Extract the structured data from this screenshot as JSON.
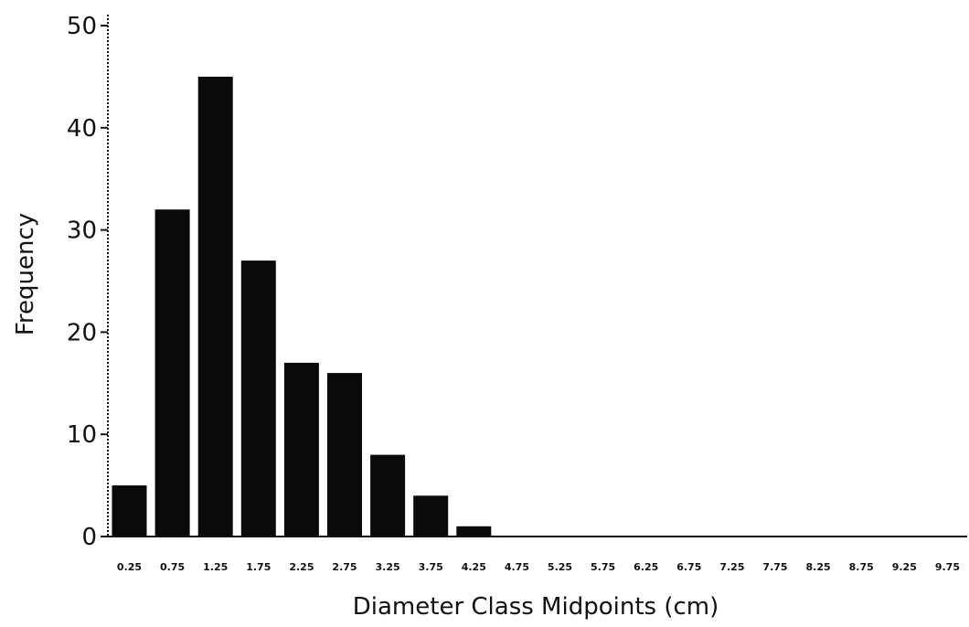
{
  "chart_data": {
    "type": "bar",
    "title": "",
    "xlabel": "Diameter Class Midpoints (cm)",
    "ylabel": "Frequency",
    "ylim": [
      0,
      50
    ],
    "yticks": [
      0,
      10,
      20,
      30,
      40,
      50
    ],
    "grid": false,
    "bar_color": "#0a0a0a",
    "categories": [
      "0.25",
      "0.75",
      "1.25",
      "1.75",
      "2.25",
      "2.75",
      "3.25",
      "3.75",
      "4.25",
      "4.75",
      "5.25",
      "5.75",
      "6.25",
      "6.75",
      "7.25",
      "7.75",
      "8.25",
      "8.75",
      "9.25",
      "9.75"
    ],
    "values": [
      5,
      32,
      45,
      27,
      17,
      16,
      8,
      4,
      1,
      0,
      0,
      0,
      0,
      0,
      0,
      0,
      0,
      0,
      0,
      0
    ]
  }
}
